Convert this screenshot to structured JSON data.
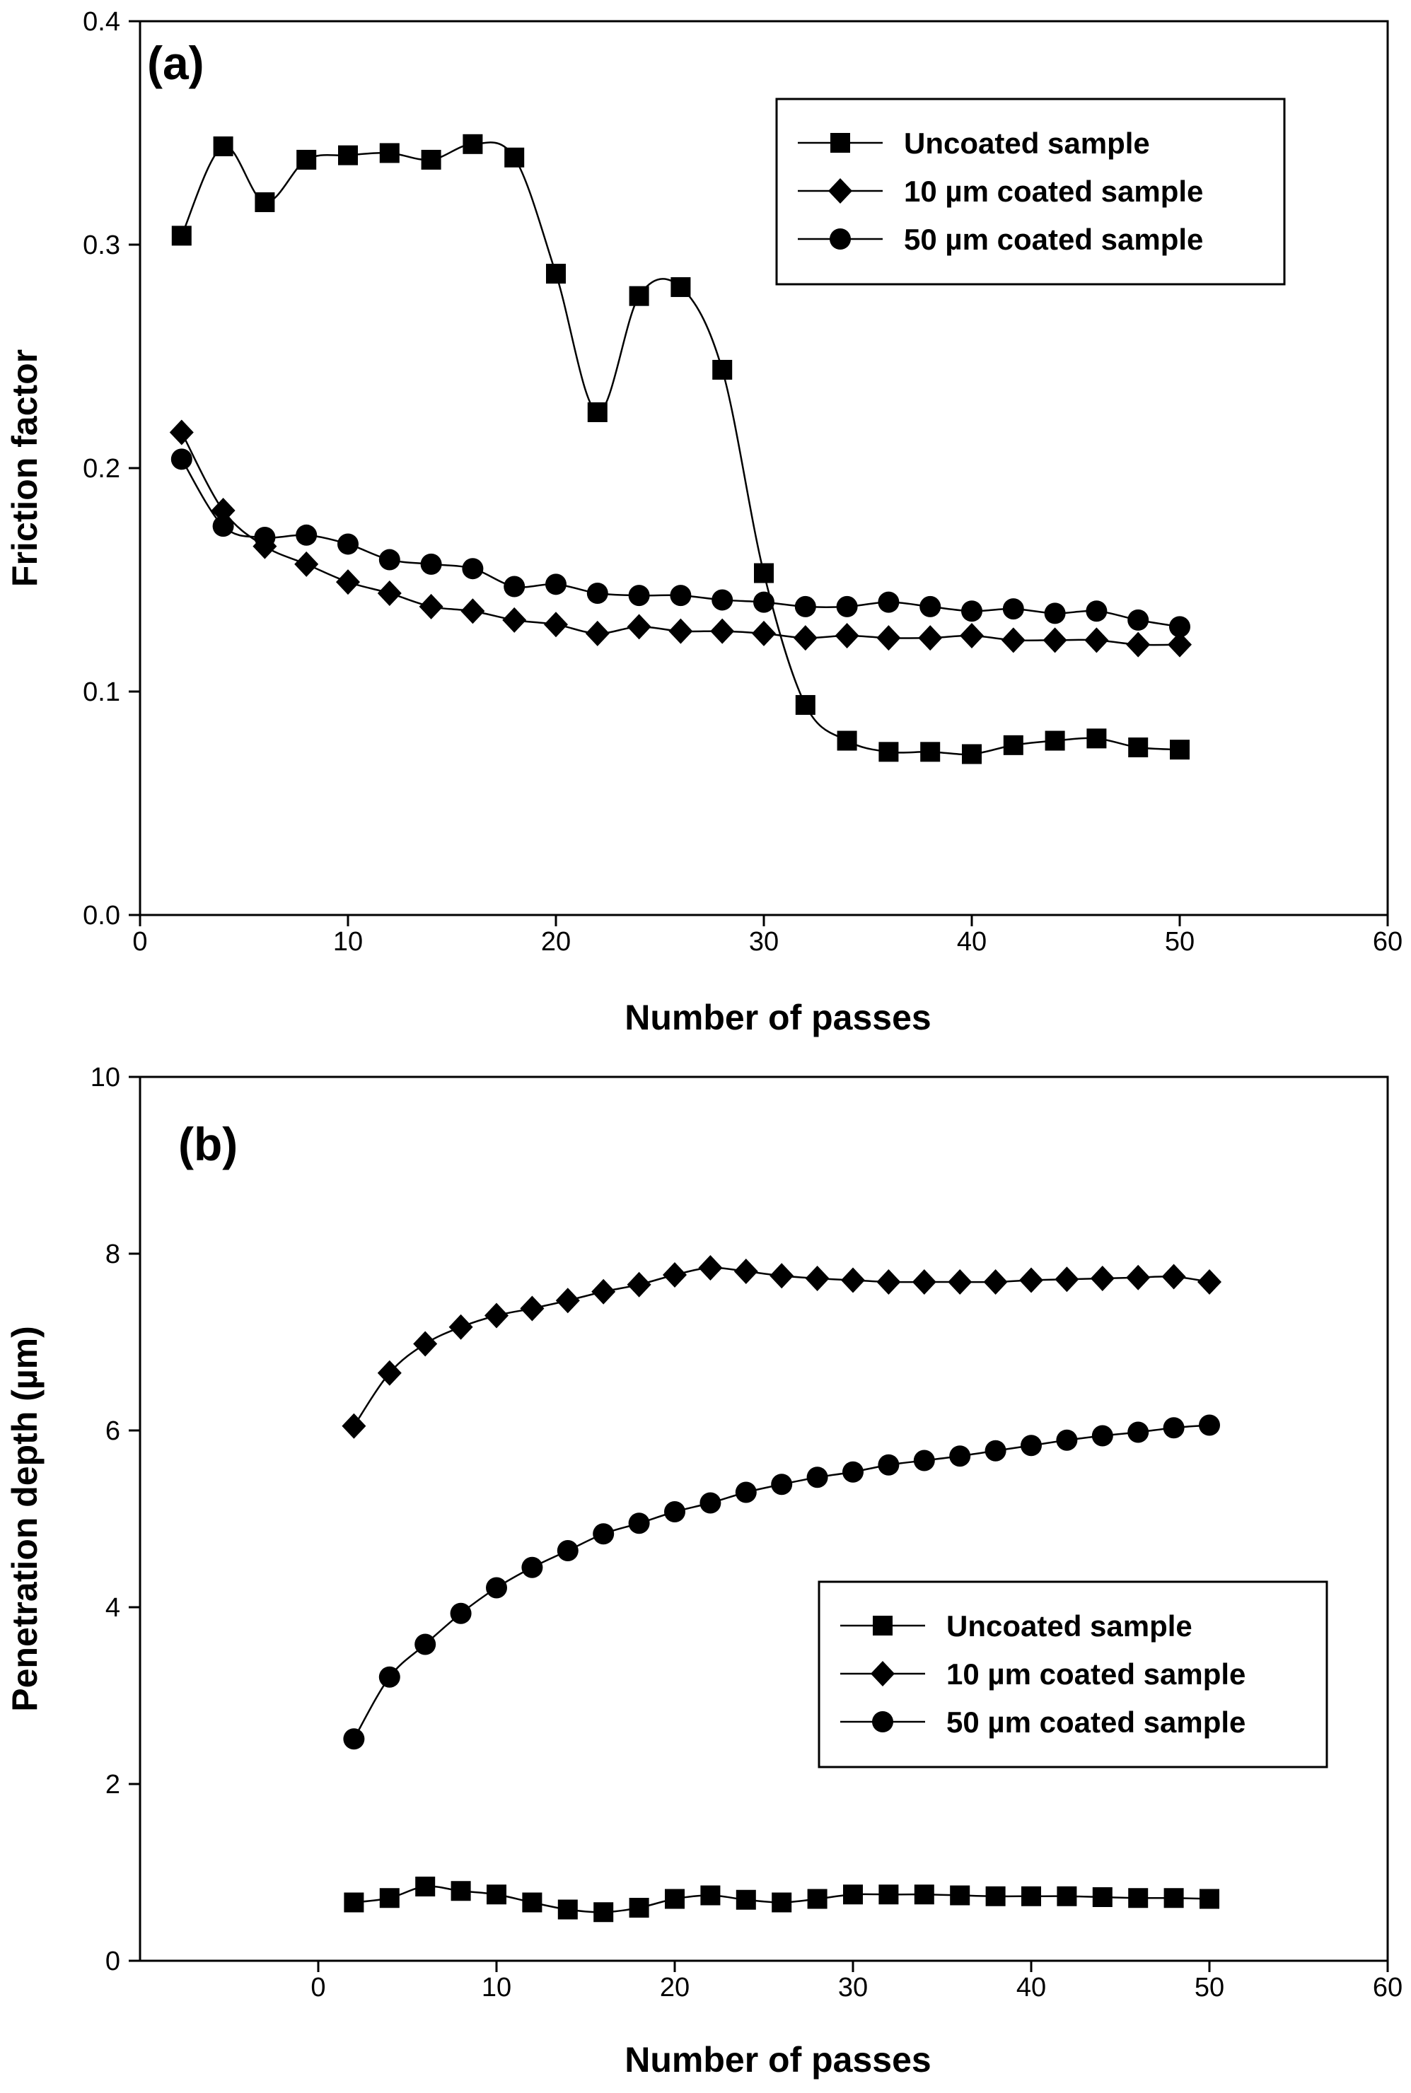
{
  "chart_data": [
    {
      "type": "line",
      "panel_label": "(a)",
      "xlabel": "Number of passes",
      "ylabel": "Friction factor",
      "xlim": [
        0,
        60
      ],
      "ylim": [
        0.0,
        0.4
      ],
      "xticks": [
        0,
        10,
        20,
        30,
        40,
        50,
        60
      ],
      "yticks": [
        0.0,
        0.1,
        0.2,
        0.3,
        0.4
      ],
      "ytick_labels": [
        "0.0",
        "0.1",
        "0.2",
        "0.3",
        "0.4"
      ],
      "legend_position": "top-right",
      "grid": false,
      "x": [
        2,
        4,
        6,
        8,
        10,
        12,
        14,
        16,
        18,
        20,
        22,
        24,
        26,
        28,
        30,
        32,
        34,
        36,
        38,
        40,
        42,
        44,
        46,
        48,
        50
      ],
      "series": [
        {
          "name": "Uncoated sample",
          "marker": "square",
          "values": [
            0.304,
            0.344,
            0.319,
            0.338,
            0.34,
            0.341,
            0.338,
            0.345,
            0.339,
            0.287,
            0.225,
            0.277,
            0.281,
            0.244,
            0.153,
            0.094,
            0.078,
            0.073,
            0.073,
            0.072,
            0.076,
            0.078,
            0.079,
            0.075,
            0.074
          ]
        },
        {
          "name": "10 µm coated sample",
          "marker": "diamond",
          "values": [
            0.216,
            0.181,
            0.165,
            0.157,
            0.149,
            0.144,
            0.138,
            0.136,
            0.132,
            0.13,
            0.126,
            0.129,
            0.127,
            0.127,
            0.126,
            0.124,
            0.125,
            0.124,
            0.124,
            0.125,
            0.123,
            0.123,
            0.123,
            0.121,
            0.121
          ]
        },
        {
          "name": "50 µm coated sample",
          "marker": "circle",
          "values": [
            0.204,
            0.174,
            0.169,
            0.17,
            0.166,
            0.159,
            0.157,
            0.155,
            0.147,
            0.148,
            0.144,
            0.143,
            0.143,
            0.141,
            0.14,
            0.138,
            0.138,
            0.14,
            0.138,
            0.136,
            0.137,
            0.135,
            0.136,
            0.132,
            0.129
          ]
        }
      ]
    },
    {
      "type": "line",
      "panel_label": "(b)",
      "xlabel": "Number of passes",
      "ylabel": "Penetration depth (µm)",
      "xlim": [
        -10,
        60
      ],
      "ylim": [
        0,
        10
      ],
      "xticks": [
        0,
        10,
        20,
        30,
        40,
        50,
        60
      ],
      "yticks": [
        0,
        2,
        4,
        6,
        8,
        10
      ],
      "ytick_labels": [
        "0",
        "2",
        "4",
        "6",
        "8",
        "10"
      ],
      "legend_position": "center-right",
      "grid": false,
      "x": [
        2,
        4,
        6,
        8,
        10,
        12,
        14,
        16,
        18,
        20,
        22,
        24,
        26,
        28,
        30,
        32,
        34,
        36,
        38,
        40,
        42,
        44,
        46,
        48,
        50
      ],
      "series": [
        {
          "name": "Uncoated sample",
          "marker": "square",
          "values": [
            0.66,
            0.71,
            0.84,
            0.79,
            0.75,
            0.66,
            0.58,
            0.55,
            0.6,
            0.7,
            0.74,
            0.69,
            0.66,
            0.7,
            0.75,
            0.75,
            0.75,
            0.74,
            0.73,
            0.73,
            0.73,
            0.72,
            0.71,
            0.71,
            0.7
          ]
        },
        {
          "name": "10 µm coated sample",
          "marker": "diamond",
          "values": [
            6.05,
            6.65,
            6.98,
            7.17,
            7.3,
            7.38,
            7.47,
            7.57,
            7.65,
            7.76,
            7.84,
            7.8,
            7.75,
            7.72,
            7.7,
            7.68,
            7.68,
            7.68,
            7.68,
            7.7,
            7.71,
            7.72,
            7.73,
            7.74,
            7.68
          ]
        },
        {
          "name": "50 µm coated sample",
          "marker": "circle",
          "values": [
            2.51,
            3.21,
            3.58,
            3.93,
            4.22,
            4.45,
            4.64,
            4.83,
            4.95,
            5.08,
            5.18,
            5.3,
            5.39,
            5.47,
            5.53,
            5.61,
            5.66,
            5.71,
            5.77,
            5.83,
            5.89,
            5.94,
            5.98,
            6.03,
            6.06
          ]
        }
      ]
    }
  ]
}
